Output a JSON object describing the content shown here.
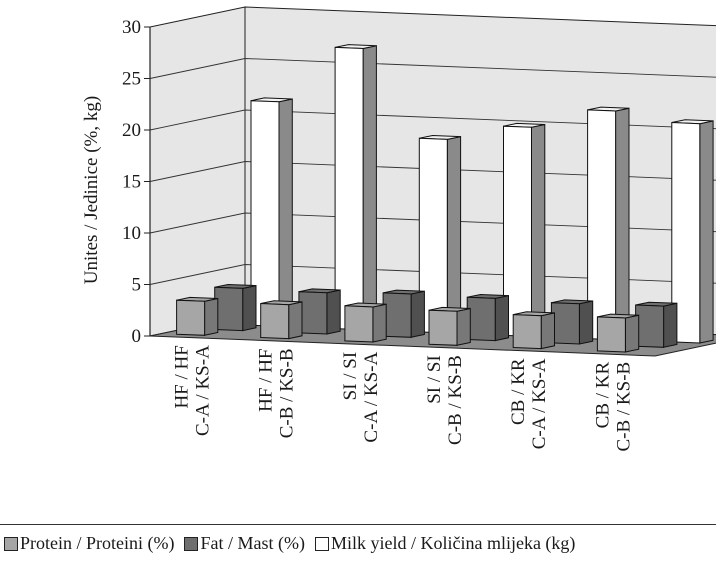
{
  "chart_data": {
    "type": "bar",
    "ylabel": "Unites / Jedinice (%, kg)",
    "ylim": [
      0,
      30
    ],
    "yticks": [
      0,
      5,
      10,
      15,
      20,
      25,
      30
    ],
    "grid": true,
    "legend_position": "bottom",
    "categories": [
      [
        "HF / HF",
        "C-A / KS-A"
      ],
      [
        "HF / HF",
        "C-B / KS-B"
      ],
      [
        "SI / SI",
        "C-A / KS-A"
      ],
      [
        "SI / SI",
        "C-B / KS-B"
      ],
      [
        "CB / KR",
        "C-A / KS-A"
      ],
      [
        "CB / KR",
        "C-B / KS-B"
      ]
    ],
    "series": [
      {
        "name": "Protein / Proteini (%)",
        "color": "#a6a6a6",
        "values": [
          3.3,
          3.3,
          3.4,
          3.3,
          3.2,
          3.3
        ]
      },
      {
        "name": "Fat / Mast (%)",
        "color": "#6f6f6f",
        "values": [
          4.1,
          4.0,
          4.2,
          4.1,
          3.9,
          4.0
        ]
      },
      {
        "name": "Milk yield / Količina mlijeka (kg)",
        "color": "#ffffff",
        "values": [
          21.8,
          27.3,
          18.8,
          20.3,
          22.2,
          21.3
        ]
      }
    ]
  }
}
